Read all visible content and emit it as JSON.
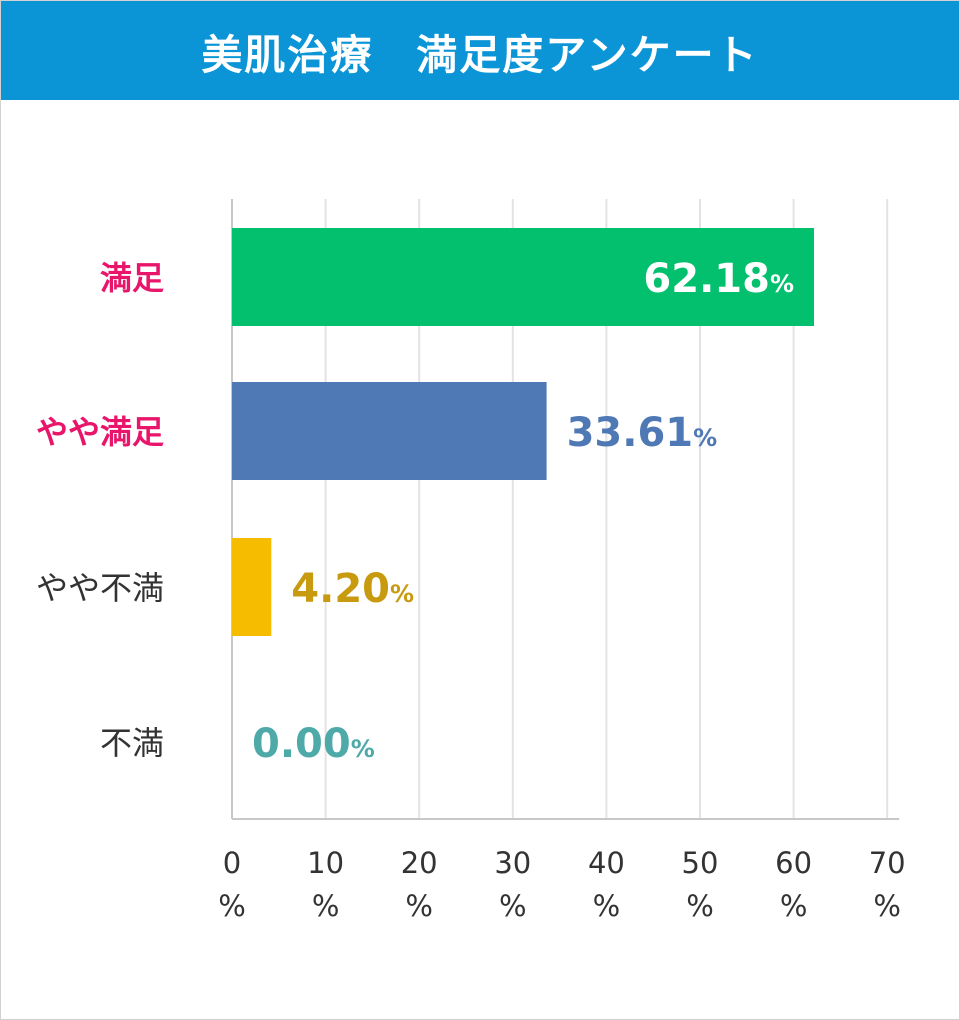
{
  "header": {
    "title": "美肌治療　満足度アンケート"
  },
  "colors": {
    "header_bg": "#0b95d6",
    "category_highlight": "#e8156b",
    "category_normal": "#333333",
    "grid": "#e3e3e3",
    "axis": "#c8c8c8"
  },
  "chart_data": {
    "type": "bar",
    "orientation": "horizontal",
    "title": "美肌治療　満足度アンケート",
    "categories": [
      "満足",
      "やや満足",
      "やや不満",
      "不満"
    ],
    "values": [
      62.18,
      33.61,
      4.2,
      0.0
    ],
    "value_labels": [
      "62.18",
      "33.61",
      "4.20",
      "0.00"
    ],
    "value_unit": "%",
    "bar_colors": [
      "#03c06e",
      "#4f79b4",
      "#f5bc00",
      "#4ea9a9"
    ],
    "value_label_colors": [
      "#ffffff",
      "#4f79b4",
      "#c89a10",
      "#4ea9a9"
    ],
    "value_label_inside": [
      true,
      false,
      false,
      false
    ],
    "category_emphasis": [
      true,
      true,
      false,
      false
    ],
    "xlim": [
      0,
      70
    ],
    "xticks": [
      0,
      10,
      20,
      30,
      40,
      50,
      60,
      70
    ],
    "xtick_labels": [
      [
        "0",
        "%"
      ],
      [
        "10",
        "%"
      ],
      [
        "20",
        "%"
      ],
      [
        "30",
        "%"
      ],
      [
        "40",
        "%"
      ],
      [
        "50",
        "%"
      ],
      [
        "60",
        "%"
      ],
      [
        "70",
        "%"
      ]
    ],
    "grid": true,
    "legend": "none"
  }
}
